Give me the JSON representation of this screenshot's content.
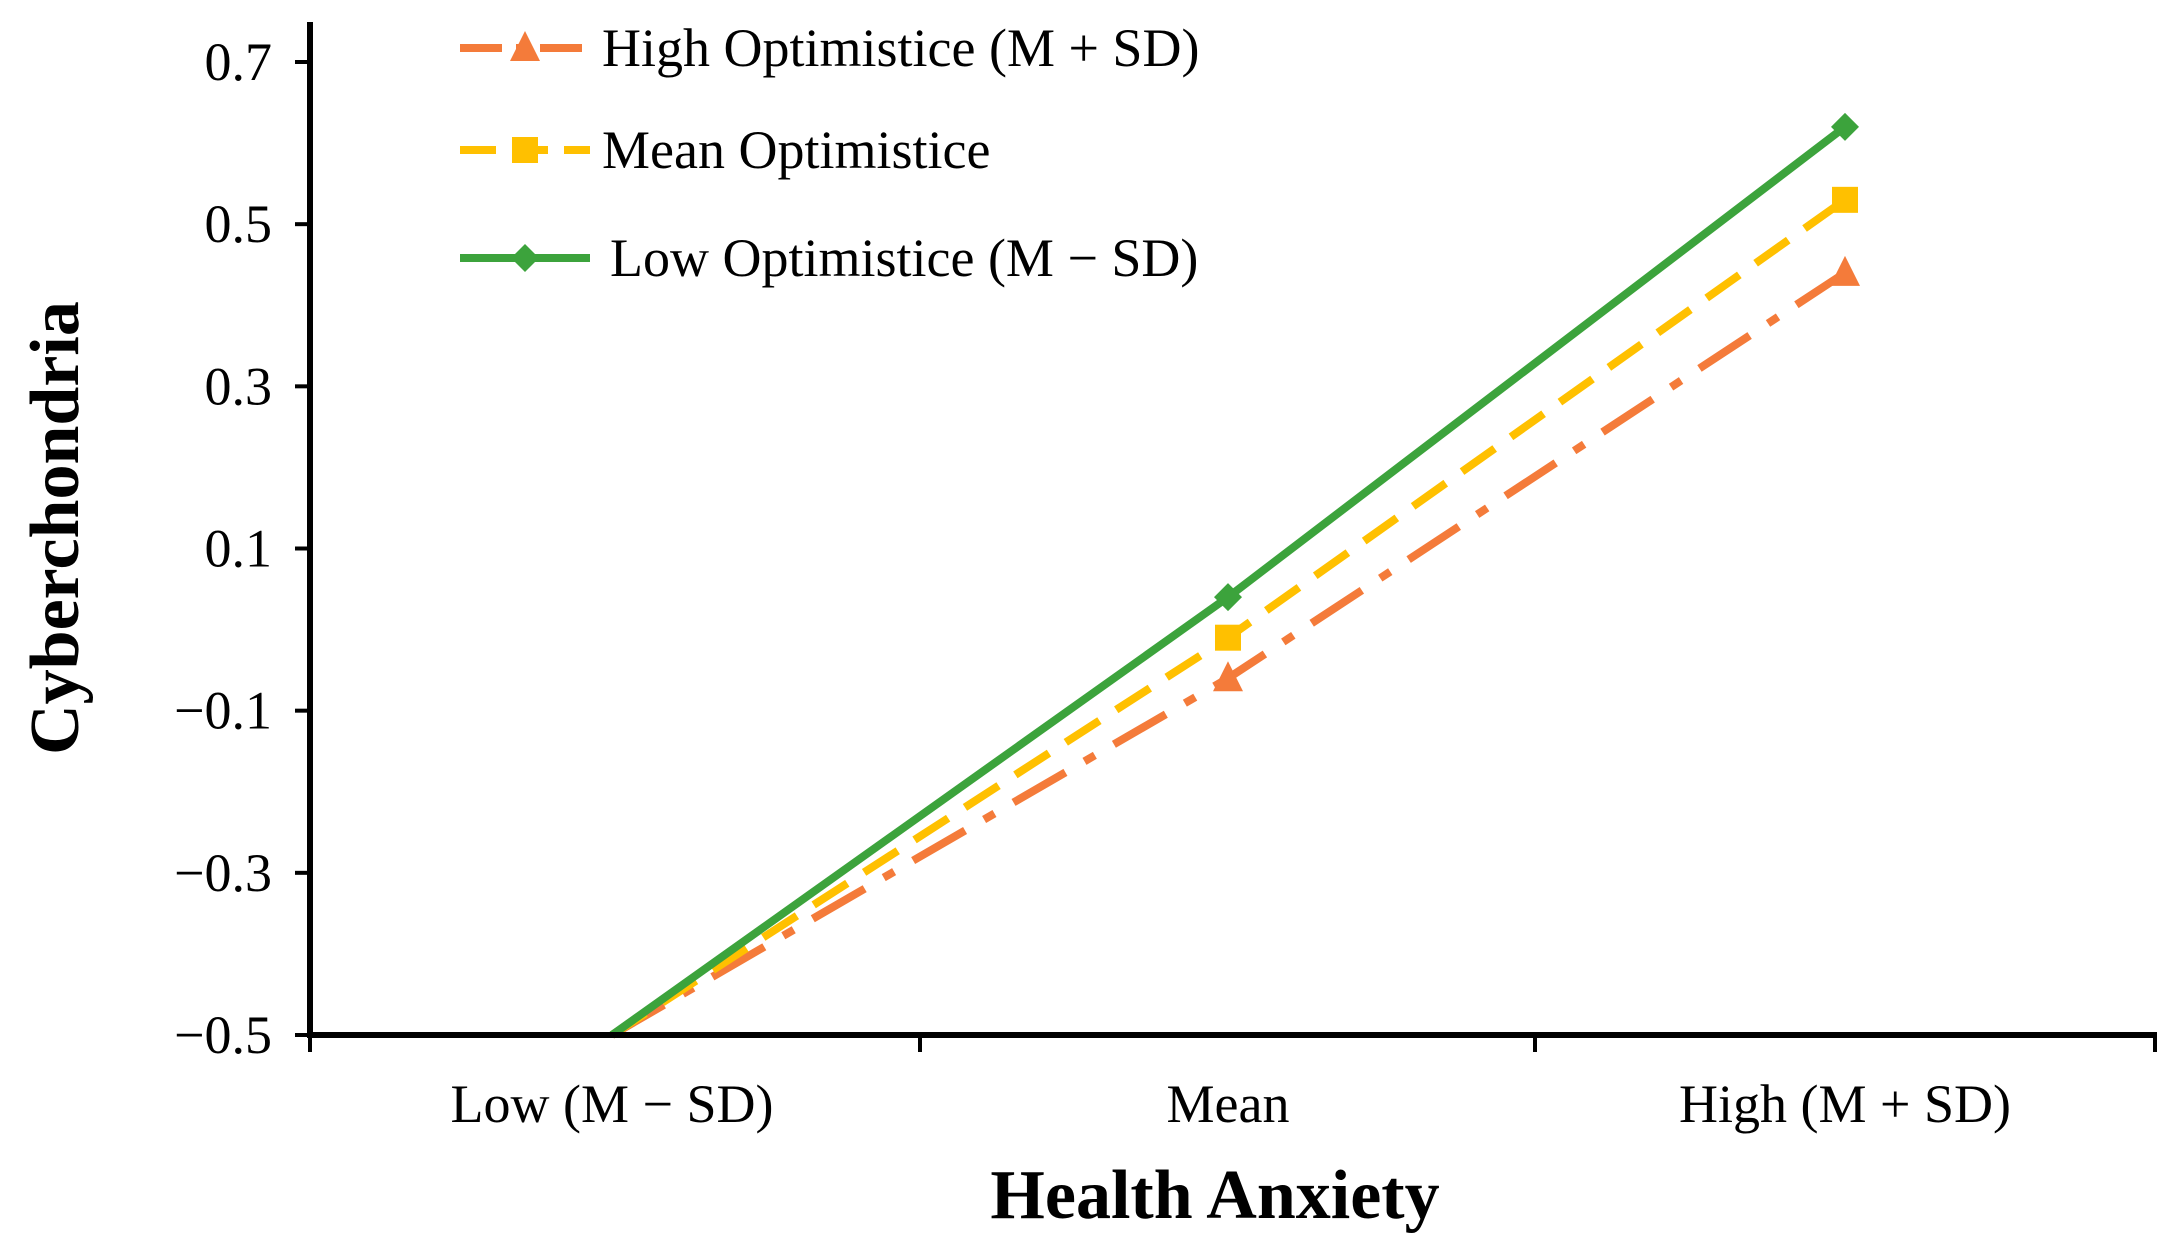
{
  "chart_data": {
    "type": "line",
    "title": "",
    "xlabel": "Health Anxiety",
    "ylabel": "Cyberchondria",
    "categories": [
      "Low (M − SD)",
      "Mean",
      "High (M + SD)"
    ],
    "ylim": [
      -0.5,
      0.7
    ],
    "yticks": [
      -0.5,
      -0.3,
      -0.1,
      0.1,
      0.3,
      0.5,
      0.7
    ],
    "ytick_labels": [
      "−0.5",
      "−0.3",
      "−0.1",
      "0.1",
      "0.3",
      "0.5",
      "0.7"
    ],
    "grid": false,
    "legend_position": "top-left",
    "series": [
      {
        "name": "High Optimistice (M + SD)",
        "values": [
          -0.5,
          -0.06,
          0.44
        ],
        "color": "#F47B3A",
        "marker": "triangle",
        "dash": "dash-dot"
      },
      {
        "name": "Mean Optimistice",
        "values": [
          -0.5,
          -0.01,
          0.53
        ],
        "color": "#FFC000",
        "marker": "square",
        "dash": "dashed"
      },
      {
        "name": "Low Optimistice (M − SD)",
        "values": [
          -0.5,
          0.04,
          0.62
        ],
        "color": "#3CA33C",
        "marker": "diamond",
        "dash": "solid"
      }
    ]
  }
}
